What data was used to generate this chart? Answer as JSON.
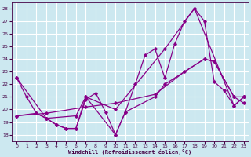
{
  "background_color": "#cce8f0",
  "line_color": "#880088",
  "grid_color": "#ffffff",
  "xlabel": "Windchill (Refroidissement éolien,°C)",
  "xlim": [
    -0.5,
    23.5
  ],
  "ylim": [
    17.5,
    28.5
  ],
  "yticks": [
    18,
    19,
    20,
    21,
    22,
    23,
    24,
    25,
    26,
    27,
    28
  ],
  "xticks": [
    0,
    1,
    2,
    3,
    4,
    5,
    6,
    7,
    8,
    9,
    10,
    11,
    12,
    13,
    14,
    15,
    16,
    17,
    18,
    19,
    20,
    21,
    22,
    23
  ],
  "lines": [
    {
      "x": [
        0,
        1,
        2,
        3,
        4,
        5,
        6,
        7,
        8,
        9,
        10,
        11,
        12,
        13,
        14,
        15,
        16,
        17,
        18,
        19,
        20,
        21,
        22,
        23
      ],
      "y": [
        22.5,
        21.0,
        19.7,
        19.3,
        18.8,
        18.5,
        18.5,
        20.8,
        21.3,
        19.8,
        18.0,
        19.8,
        22.0,
        24.3,
        24.8,
        22.5,
        25.2,
        27.0,
        28.0,
        27.0,
        22.2,
        21.5,
        20.3,
        21.0
      ]
    },
    {
      "x": [
        0,
        3,
        7,
        10,
        14,
        17,
        19,
        20,
        22,
        23
      ],
      "y": [
        19.5,
        19.7,
        20.2,
        20.5,
        21.2,
        23.0,
        24.0,
        23.8,
        21.0,
        20.5
      ]
    },
    {
      "x": [
        0,
        2,
        3,
        4,
        5,
        6,
        7,
        10,
        11,
        14,
        15,
        19,
        20,
        22,
        23
      ],
      "y": [
        19.5,
        19.7,
        19.3,
        18.8,
        18.5,
        18.5,
        21.0,
        18.0,
        19.8,
        21.0,
        22.0,
        24.0,
        23.8,
        21.0,
        21.0
      ]
    },
    {
      "x": [
        0,
        3,
        6,
        7,
        10,
        15,
        18,
        22,
        23
      ],
      "y": [
        22.5,
        19.3,
        19.5,
        21.0,
        20.0,
        24.8,
        28.0,
        20.3,
        21.0
      ]
    }
  ]
}
